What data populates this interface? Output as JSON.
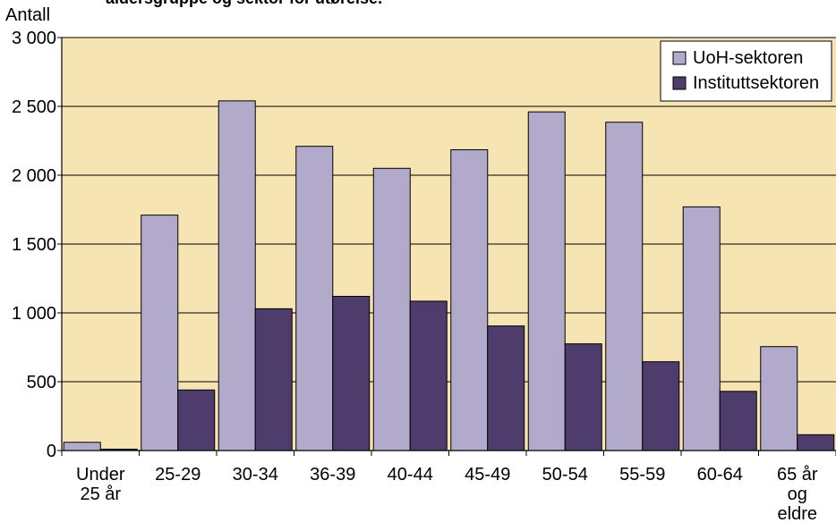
{
  "chart_data": {
    "type": "bar",
    "title": "aldersgruppe og sektor for utøreise.",
    "ylabel": "Antall",
    "xlabel": "",
    "ylim": [
      0,
      3000
    ],
    "yticks": [
      0,
      500,
      1000,
      1500,
      2000,
      2500,
      3000
    ],
    "ytick_labels": [
      "0",
      "500",
      "1 000",
      "1 500",
      "2 000",
      "2 500",
      "3 000"
    ],
    "grid": "horizontal",
    "legend_position": "top-right",
    "categories": [
      [
        "Under",
        "25 år"
      ],
      [
        "25-29"
      ],
      [
        "30-34"
      ],
      [
        "36-39"
      ],
      [
        "40-44"
      ],
      [
        "45-49"
      ],
      [
        "50-54"
      ],
      [
        "55-59"
      ],
      [
        "60-64"
      ],
      [
        "65 år",
        "og",
        "eldre"
      ]
    ],
    "series": [
      {
        "name": "UoH-sektoren",
        "color": "#b1aacb",
        "values": [
          60,
          1710,
          2540,
          2210,
          2050,
          2185,
          2460,
          2385,
          1770,
          755
        ]
      },
      {
        "name": "Instituttsektoren",
        "color": "#4e3d6c",
        "values": [
          10,
          440,
          1030,
          1120,
          1085,
          905,
          775,
          645,
          430,
          115
        ]
      }
    ],
    "plot_background": "#f7e4b3"
  }
}
